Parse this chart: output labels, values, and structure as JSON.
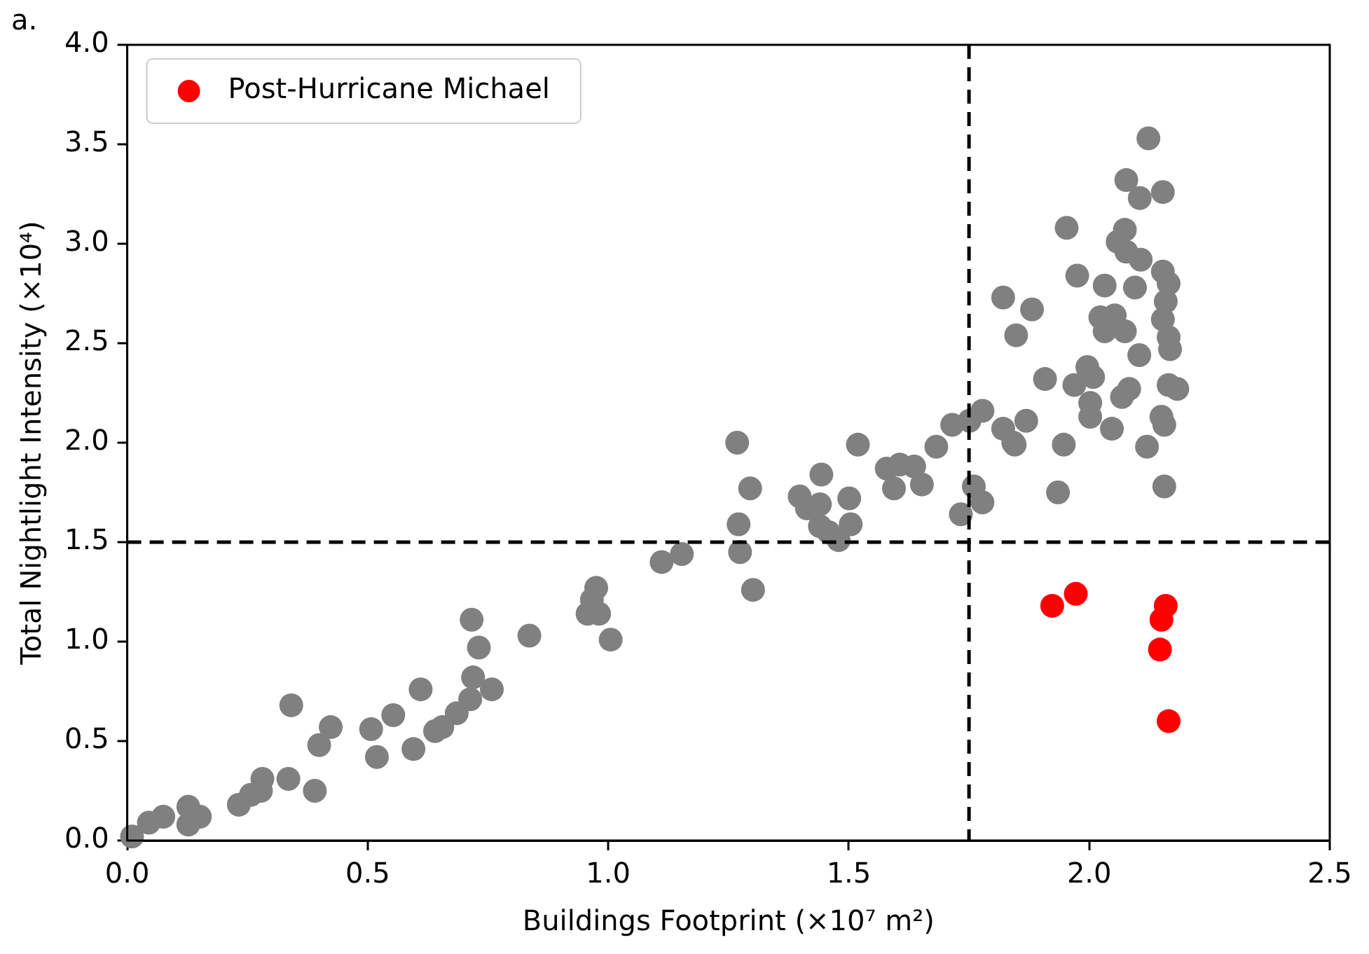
{
  "chart_data": {
    "type": "scatter",
    "title": "a.",
    "xlabel": "Buildings Footprint (×10⁷ m²)",
    "ylabel": "Total Nightlight Intensity (×10⁴)",
    "xlim": [
      0,
      2.5
    ],
    "xticks": [
      {
        "value": 0,
        "label": "0.0"
      },
      {
        "value": 0.5,
        "label": "0.5"
      },
      {
        "value": 1,
        "label": "1.0"
      },
      {
        "value": 1.5,
        "label": "1.5"
      },
      {
        "value": 2,
        "label": "2.0"
      },
      {
        "value": 2.5,
        "label": "2.5"
      }
    ],
    "ylim": [
      0,
      4
    ],
    "yticks": [
      {
        "value": 0,
        "label": "0.0"
      },
      {
        "value": 0.5,
        "label": "0.5"
      },
      {
        "value": 1,
        "label": "1.0"
      },
      {
        "value": 1.5,
        "label": "1.5"
      },
      {
        "value": 2,
        "label": "2.0"
      },
      {
        "value": 2.5,
        "label": "2.5"
      },
      {
        "value": 3,
        "label": "3.0"
      },
      {
        "value": 3.5,
        "label": "3.5"
      },
      {
        "value": 4,
        "label": "4.0"
      }
    ],
    "grid": false,
    "legend": "top left",
    "marker": "circle",
    "ref_lines": [
      {
        "axis": "x",
        "value": 1.75,
        "color": "#000000",
        "line_style": "dashed"
      },
      {
        "axis": "y",
        "value": 1.5,
        "color": "#000000",
        "line_style": "dashed"
      }
    ],
    "series": [
      {
        "color": "#808080",
        "x": [
          0.01,
          0.045,
          0.075,
          0.127,
          0.151,
          0.127,
          0.232,
          0.257,
          0.281,
          0.278,
          0.341,
          0.335,
          0.39,
          0.399,
          0.423,
          0.507,
          0.519,
          0.553,
          0.595,
          0.61,
          0.64,
          0.655,
          0.685,
          0.713,
          0.719,
          0.716,
          0.731,
          0.758,
          0.836,
          0.957,
          0.975,
          0.981,
          0.966,
          1.005,
          1.111,
          1.153,
          1.268,
          1.295,
          1.271,
          1.274,
          1.301,
          1.398,
          1.44,
          1.413,
          1.443,
          1.44,
          1.479,
          1.504,
          1.458,
          1.501,
          1.519,
          1.579,
          1.594,
          1.606,
          1.636,
          1.652,
          1.682,
          1.715,
          1.751,
          1.778,
          1.76,
          1.778,
          1.733,
          1.821,
          1.842,
          2.123,
          2.077,
          2.105,
          2.153,
          1.953,
          2.074,
          2.059,
          2.107,
          2.077,
          1.975,
          2.032,
          2.095,
          2.153,
          2.165,
          2.159,
          1.821,
          1.881,
          1.848,
          2.023,
          2.053,
          2.032,
          2.074,
          2.104,
          2.153,
          2.165,
          2.168,
          1.908,
          1.996,
          1.969,
          2.008,
          2.083,
          2.068,
          2.165,
          2.183,
          2.002,
          2.002,
          2.047,
          2.15,
          2.156,
          1.869,
          1.845,
          1.947,
          2.12,
          1.935,
          2.156
        ],
        "values": [
          0.02,
          0.09,
          0.12,
          0.17,
          0.12,
          0.08,
          0.18,
          0.23,
          0.31,
          0.25,
          0.68,
          0.31,
          0.25,
          0.48,
          0.57,
          0.56,
          0.42,
          0.63,
          0.46,
          0.76,
          0.55,
          0.57,
          0.64,
          0.71,
          0.82,
          1.11,
          0.97,
          0.76,
          1.03,
          1.14,
          1.27,
          1.14,
          1.21,
          1.01,
          1.4,
          1.44,
          2.0,
          1.77,
          1.59,
          1.45,
          1.26,
          1.73,
          1.69,
          1.67,
          1.84,
          1.58,
          1.51,
          1.59,
          1.55,
          1.72,
          1.99,
          1.87,
          1.77,
          1.89,
          1.88,
          1.79,
          1.98,
          2.09,
          2.11,
          2.16,
          1.78,
          1.7,
          1.64,
          2.07,
          2.0,
          3.53,
          3.32,
          3.23,
          3.26,
          3.08,
          3.07,
          3.01,
          2.92,
          2.96,
          2.84,
          2.79,
          2.78,
          2.86,
          2.8,
          2.71,
          2.73,
          2.67,
          2.54,
          2.63,
          2.64,
          2.56,
          2.56,
          2.44,
          2.62,
          2.53,
          2.47,
          2.32,
          2.38,
          2.29,
          2.33,
          2.27,
          2.23,
          2.29,
          2.27,
          2.2,
          2.13,
          2.07,
          2.13,
          2.09,
          2.11,
          1.99,
          1.99,
          1.98,
          1.75,
          1.78
        ]
      },
      {
        "name": "Post-Hurricane Michael",
        "color": "#ff0000",
        "x": [
          1.923,
          1.972,
          2.159,
          2.15,
          2.147,
          2.165
        ],
        "values": [
          1.18,
          1.24,
          1.18,
          1.11,
          0.96,
          0.6
        ]
      }
    ]
  }
}
